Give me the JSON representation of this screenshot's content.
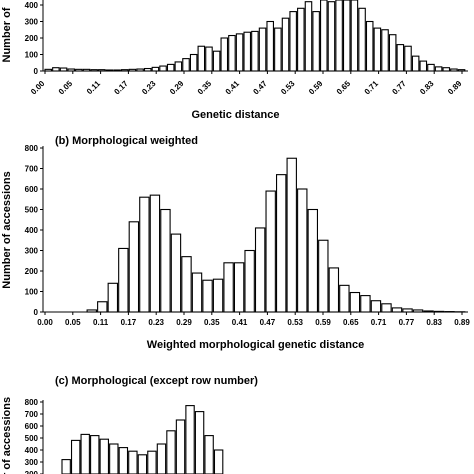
{
  "chart_data": [
    {
      "type": "bar",
      "title": "",
      "xlabel": "Genetic distance",
      "ylabel": "Number of",
      "yticks": [
        0,
        100,
        200,
        300,
        400
      ],
      "xticks": [
        "0.00",
        "0.05",
        "0.11",
        "0.17",
        "0.23",
        "0.29",
        "0.35",
        "0.41",
        "0.47",
        "0.53",
        "0.59",
        "0.65",
        "0.71",
        "0.77",
        "0.83",
        "0.89"
      ],
      "values": [
        10,
        20,
        18,
        12,
        10,
        10,
        8,
        8,
        6,
        6,
        8,
        10,
        12,
        15,
        22,
        30,
        40,
        55,
        75,
        100,
        150,
        145,
        120,
        200,
        215,
        225,
        235,
        240,
        260,
        300,
        260,
        320,
        360,
        380,
        420,
        360,
        450,
        420,
        470,
        430,
        460,
        380,
        300,
        260,
        250,
        220,
        160,
        150,
        90,
        60,
        40,
        25,
        20,
        12,
        8
      ]
    },
    {
      "type": "bar",
      "title": "(b) Morphological weighted",
      "xlabel": "Weighted morphological genetic distance",
      "ylabel": "Number of accessions",
      "yticks": [
        0,
        100,
        200,
        300,
        400,
        500,
        600,
        700,
        800
      ],
      "xticks": [
        "0.00",
        "0.05",
        "0.11",
        "0.17",
        "0.23",
        "0.29",
        "0.35",
        "0.41",
        "0.47",
        "0.53",
        "0.59",
        "0.65",
        "0.71",
        "0.77",
        "0.83",
        "0.89"
      ],
      "values": [
        0,
        0,
        0,
        0,
        10,
        50,
        140,
        310,
        440,
        560,
        570,
        500,
        380,
        270,
        190,
        155,
        160,
        240,
        240,
        300,
        410,
        590,
        670,
        750,
        600,
        500,
        350,
        215,
        130,
        95,
        80,
        55,
        40,
        20,
        15,
        10,
        5,
        3,
        2,
        1
      ]
    },
    {
      "type": "bar",
      "title": "(c) Morphological (except row number)",
      "xlabel": "",
      "ylabel": "er of accessions",
      "yticks": [
        200,
        300,
        400,
        500,
        600,
        700,
        800
      ],
      "xticks": [],
      "values": [
        320,
        480,
        530,
        520,
        490,
        450,
        420,
        390,
        360,
        390,
        450,
        560,
        650,
        770,
        720,
        520,
        400
      ]
    }
  ]
}
